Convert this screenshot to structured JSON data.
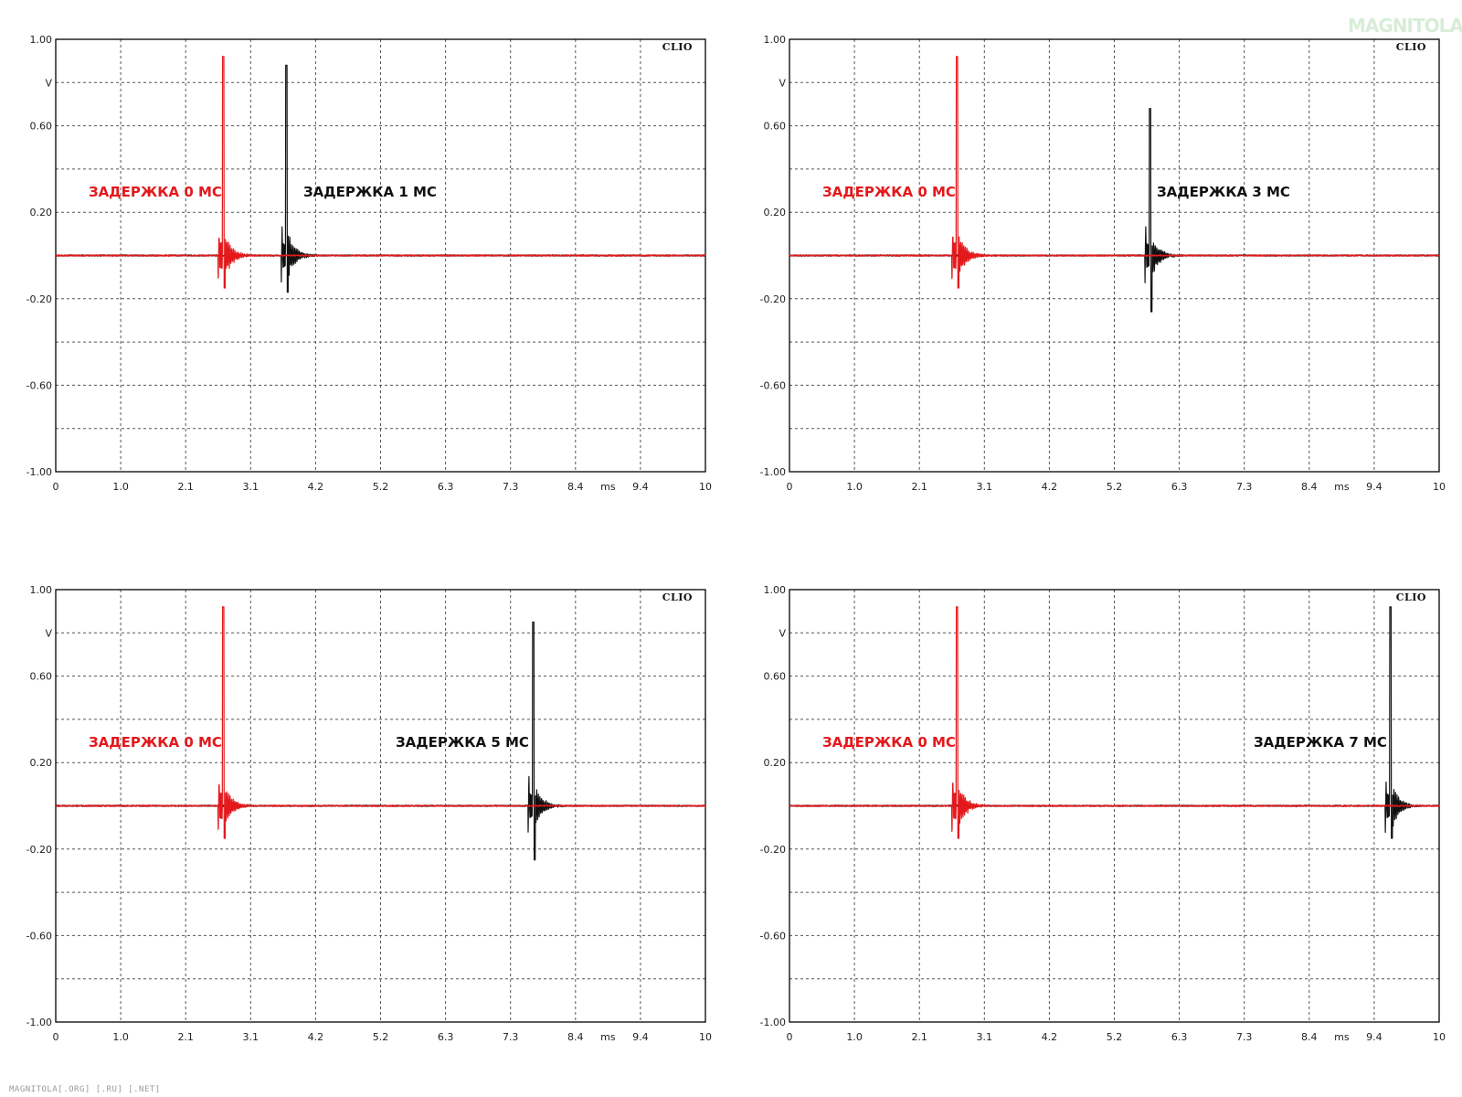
{
  "colors": {
    "reference": "#e3191c",
    "delayed": "#111111",
    "grid": "#555555",
    "frame": "#000000"
  },
  "watermark": "MAGNITOLA",
  "footer": "MAGNITOLA[.ORG] [.RU] [.NET]",
  "chart_data": [
    {
      "type": "line",
      "brand": "CLIO",
      "xlabel": "ms",
      "ylabel": "V",
      "xlim": [
        0,
        10
      ],
      "ylim": [
        -1,
        1
      ],
      "x_ticks": [
        "0",
        "1.0",
        "2.1",
        "3.1",
        "4.2",
        "5.2",
        "6.3",
        "7.3",
        "8.4",
        "9.4",
        "10"
      ],
      "y_ticks": [
        "1.00",
        "0.60",
        "0.20",
        "-0.20",
        "-0.60",
        "-1.00"
      ],
      "grid": true,
      "series": [
        {
          "name": "ЗАДЕРЖКА 0 МС",
          "color": "#e3191c",
          "impulse_ms": 2.58,
          "peak_v": 0.92,
          "min_v": -0.15
        },
        {
          "name": "ЗАДЕРЖКА 1 МС",
          "color": "#111111",
          "impulse_ms": 3.55,
          "peak_v": 0.88,
          "min_v": -0.17
        }
      ]
    },
    {
      "type": "line",
      "brand": "CLIO",
      "xlabel": "ms",
      "ylabel": "V",
      "xlim": [
        0,
        10
      ],
      "ylim": [
        -1,
        1
      ],
      "x_ticks": [
        "0",
        "1.0",
        "2.1",
        "3.1",
        "4.2",
        "5.2",
        "6.3",
        "7.3",
        "8.4",
        "9.4",
        "10"
      ],
      "y_ticks": [
        "1.00",
        "0.60",
        "0.20",
        "-0.20",
        "-0.60",
        "-1.00"
      ],
      "grid": true,
      "series": [
        {
          "name": "ЗАДЕРЖКА 0 МС",
          "color": "#e3191c",
          "impulse_ms": 2.58,
          "peak_v": 0.92,
          "min_v": -0.15
        },
        {
          "name": "ЗАДЕРЖКА 3 МС",
          "color": "#111111",
          "impulse_ms": 5.55,
          "peak_v": 0.68,
          "min_v": -0.26
        }
      ]
    },
    {
      "type": "line",
      "brand": "CLIO",
      "xlabel": "ms",
      "ylabel": "V",
      "xlim": [
        0,
        10
      ],
      "ylim": [
        -1,
        1
      ],
      "x_ticks": [
        "0",
        "1.0",
        "2.1",
        "3.1",
        "4.2",
        "5.2",
        "6.3",
        "7.3",
        "8.4",
        "9.4",
        "10"
      ],
      "y_ticks": [
        "1.00",
        "0.60",
        "0.20",
        "-0.20",
        "-0.60",
        "-1.00"
      ],
      "grid": true,
      "series": [
        {
          "name": "ЗАДЕРЖКА 0 МС",
          "color": "#e3191c",
          "impulse_ms": 2.58,
          "peak_v": 0.92,
          "min_v": -0.15
        },
        {
          "name": "ЗАДЕРЖКА 5 МС",
          "color": "#111111",
          "impulse_ms": 7.35,
          "peak_v": 0.85,
          "min_v": -0.25
        }
      ]
    },
    {
      "type": "line",
      "brand": "CLIO",
      "xlabel": "ms",
      "ylabel": "V",
      "xlim": [
        0,
        10
      ],
      "ylim": [
        -1,
        1
      ],
      "x_ticks": [
        "0",
        "1.0",
        "2.1",
        "3.1",
        "4.2",
        "5.2",
        "6.3",
        "7.3",
        "8.4",
        "9.4",
        "10"
      ],
      "y_ticks": [
        "1.00",
        "0.60",
        "0.20",
        "-0.20",
        "-0.60",
        "-1.00"
      ],
      "grid": true,
      "series": [
        {
          "name": "ЗАДЕРЖКА 0 МС",
          "color": "#e3191c",
          "impulse_ms": 2.58,
          "peak_v": 0.92,
          "min_v": -0.15
        },
        {
          "name": "ЗАДЕРЖКА 7 МС",
          "color": "#111111",
          "impulse_ms": 9.25,
          "peak_v": 0.92,
          "min_v": -0.15
        }
      ]
    }
  ]
}
